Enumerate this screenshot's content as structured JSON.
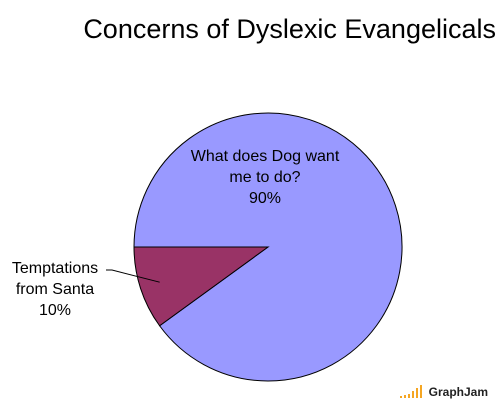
{
  "chart_data": {
    "type": "pie",
    "title": "Concerns of Dyslexic Evangelicals",
    "categories": [
      "What does Dog want me to do?",
      "Temptations from Santa"
    ],
    "values": [
      90,
      10
    ],
    "value_labels": [
      "90%",
      "10%"
    ],
    "colors": [
      "#9999ff",
      "#993366"
    ]
  },
  "watermark": "GraphJam"
}
